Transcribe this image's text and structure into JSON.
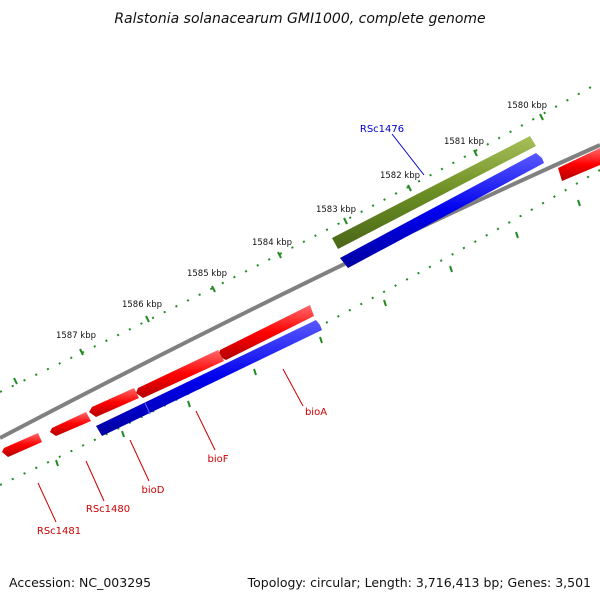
{
  "title": "Ralstonia solanacearum GMI1000, complete genome",
  "footer": {
    "accession": "Accession: NC_003295",
    "summary": "Topology: circular; Length: 3,716,413 bp; Genes: 3,501"
  },
  "ticks": [
    "1580 kbp",
    "1581 kbp",
    "1582 kbp",
    "1583 kbp",
    "1584 kbp",
    "1585 kbp",
    "1586 kbp",
    "1587 kbp"
  ],
  "genes": [
    {
      "name": "RSc1476",
      "color": "#0000cc"
    },
    {
      "name": "bioA",
      "color": "#cc0000"
    },
    {
      "name": "bioF",
      "color": "#cc0000"
    },
    {
      "name": "bioD",
      "color": "#cc0000"
    },
    {
      "name": "RSc1480",
      "color": "#cc0000"
    },
    {
      "name": "RSc1481",
      "color": "#cc0000"
    }
  ],
  "colors": {
    "cds_forward": "#ff0000",
    "cds_reverse": "#0000ee",
    "gene": "#6b8e23",
    "backbone": "#808080",
    "ticks": "#228b22"
  }
}
